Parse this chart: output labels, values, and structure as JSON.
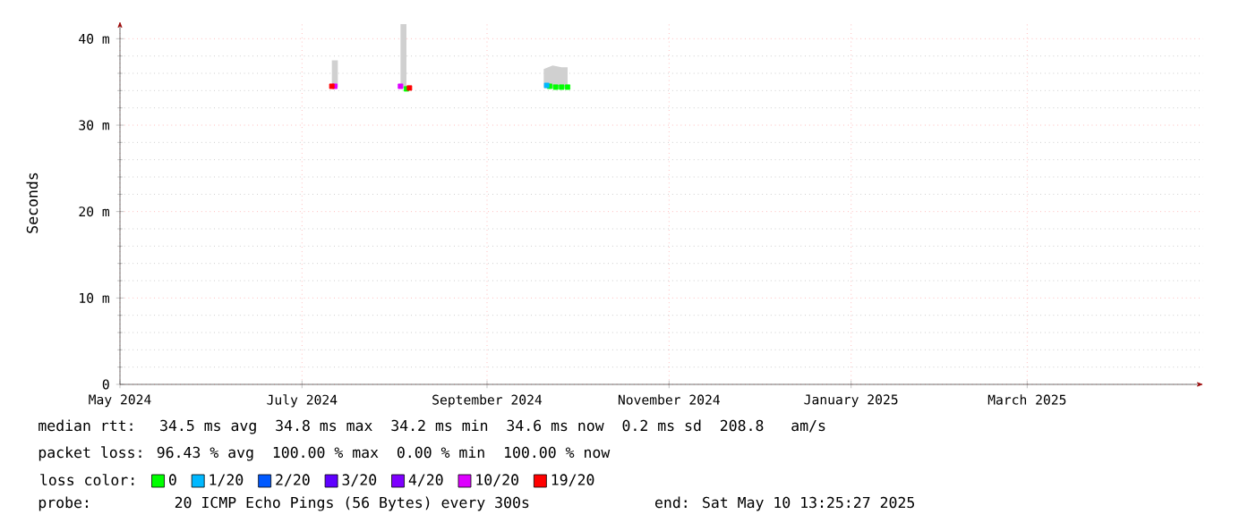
{
  "chart_data": {
    "type": "scatter",
    "ylabel": "Seconds",
    "legend_title": "loss color:",
    "xlim": [
      "2024-05-01",
      "2025-04-29"
    ],
    "xticks": [
      {
        "value": "2024-05-01",
        "label": "May 2024"
      },
      {
        "value": "2024-07-01",
        "label": "July 2024"
      },
      {
        "value": "2024-09-01",
        "label": "September 2024"
      },
      {
        "value": "2024-11-01",
        "label": "November 2024"
      },
      {
        "value": "2025-01-01",
        "label": "January 2025"
      },
      {
        "value": "2025-03-01",
        "label": "March 2025"
      }
    ],
    "ylim": [
      0,
      42
    ],
    "yticks": [
      {
        "value": 0,
        "label": "0"
      },
      {
        "value": 10,
        "label": "10 m"
      },
      {
        "value": 20,
        "label": "20 m"
      },
      {
        "value": 30,
        "label": "30 m"
      },
      {
        "value": 40,
        "label": "40 m"
      }
    ],
    "grid": true,
    "legend": "bottom",
    "marker": "square",
    "series": [
      {
        "type": "line",
        "marker": "none",
        "color": "#d0d0d0",
        "x": [
          "2024-07-11",
          "2024-07-13",
          "2024-07-20",
          "2024-08-03",
          "2024-08-05",
          "2024-08-15",
          "2024-09-20",
          "2024-09-23",
          "2024-09-26",
          "2024-09-28"
        ],
        "values": [
          34.5,
          34.5,
          null,
          34.4,
          34.3,
          null,
          34.6,
          34.5,
          34.4,
          34.4
        ],
        "lower": [
          34.5,
          34.5,
          null,
          34.4,
          34.3,
          null,
          34.3,
          34.3,
          34.3,
          34.3
        ],
        "upper": [
          37.5,
          37.5,
          null,
          41.7,
          41.7,
          null,
          36.5,
          36.9,
          36.7,
          36.7
        ]
      },
      {
        "name": "0",
        "color": "#00ff00",
        "x": [
          "2024-08-05",
          "2024-09-22",
          "2024-09-24",
          "2024-09-26",
          "2024-09-28"
        ],
        "values": [
          34.2,
          34.5,
          34.4,
          34.4,
          34.4
        ]
      },
      {
        "name": "1/20",
        "color": "#00b8ff",
        "x": [
          "2024-09-21"
        ],
        "values": [
          34.6
        ]
      },
      {
        "name": "2/20",
        "color": "#0059ff"
      },
      {
        "name": "3/20",
        "color": "#5e00ff"
      },
      {
        "name": "4/20",
        "color": "#7e00ff"
      },
      {
        "name": "10/20",
        "color": "#dd00ff",
        "x": [
          "2024-07-12",
          "2024-08-03"
        ],
        "values": [
          34.5,
          34.5
        ]
      },
      {
        "name": "19/20",
        "color": "#ff0000",
        "x": [
          "2024-07-11",
          "2024-08-06"
        ],
        "values": [
          34.5,
          34.3
        ]
      }
    ],
    "annotations": [
      "median rtt:  34.5 ms avg  34.8 ms max  34.2 ms min  34.6 ms now  0.2 ms sd  208.8   am/s",
      "packet loss: 96.43 % avg  100.00 % max  0.00 % min  100.00 % now",
      "probe:       20 ICMP Echo Pings (56 Bytes) every 300s              end: Sat May 10 13:25:27 2025"
    ]
  }
}
